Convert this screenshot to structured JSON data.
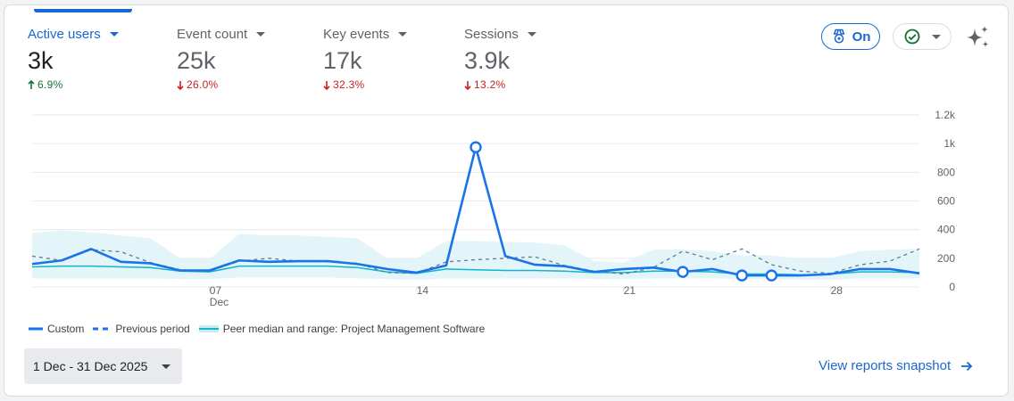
{
  "metrics": [
    {
      "label": "Active users",
      "value": "3k",
      "delta": "6.9%",
      "direction": "up",
      "active": true
    },
    {
      "label": "Event count",
      "value": "25k",
      "delta": "26.0%",
      "direction": "down",
      "active": false
    },
    {
      "label": "Key events",
      "value": "17k",
      "delta": "32.3%",
      "direction": "down",
      "active": false
    },
    {
      "label": "Sessions",
      "value": "3.9k",
      "delta": "13.2%",
      "direction": "down",
      "active": false
    }
  ],
  "toolbar": {
    "benchmark_toggle_label": "On",
    "benchmark_icon": "medal-icon",
    "status_icon": "check-circle-icon",
    "insights_icon": "sparkle-icon"
  },
  "legend": {
    "custom": "Custom",
    "previous": "Previous period",
    "peer": "Peer median and range: Project Management Software"
  },
  "date_range": {
    "label": "1 Dec - 31 Dec 2025"
  },
  "footer": {
    "view_link": "View reports snapshot",
    "arrow_icon": "arrow-right-icon"
  },
  "colors": {
    "primary": "#1967d2",
    "line_custom": "#1a73e8",
    "line_previous": "#5f7d95",
    "peer_median": "#12b5cb",
    "peer_range": "#e3f5f9",
    "up": "#137333",
    "down": "#c5221f"
  },
  "chart_data": {
    "type": "line",
    "title": "Active users",
    "x": [
      1,
      2,
      3,
      4,
      5,
      6,
      7,
      8,
      9,
      10,
      11,
      12,
      13,
      14,
      15,
      16,
      17,
      18,
      19,
      20,
      21,
      22,
      23,
      24,
      25,
      26,
      27,
      28,
      29,
      30,
      31
    ],
    "x_tick_labels": [
      {
        "day": 7,
        "label": "07",
        "sub": "Dec"
      },
      {
        "day": 14,
        "label": "14"
      },
      {
        "day": 21,
        "label": "21"
      },
      {
        "day": 28,
        "label": "28"
      }
    ],
    "y_tick_labels": [
      "0",
      "200",
      "400",
      "600",
      "800",
      "1k",
      "1.2k"
    ],
    "ylim": [
      0,
      1200
    ],
    "grid": true,
    "legend_position": "bottom",
    "series": [
      {
        "name": "Custom",
        "style": "solid",
        "values": [
          160,
          185,
          265,
          175,
          165,
          115,
          115,
          185,
          175,
          180,
          180,
          160,
          125,
          100,
          150,
          975,
          215,
          155,
          145,
          105,
          125,
          135,
          105,
          125,
          80,
          80,
          80,
          90,
          125,
          125,
          95
        ],
        "anomalies": [
          16,
          23,
          25,
          26
        ]
      },
      {
        "name": "Previous period",
        "style": "dashed",
        "values": [
          215,
          185,
          260,
          245,
          170,
          120,
          110,
          180,
          200,
          180,
          175,
          165,
          100,
          95,
          175,
          190,
          200,
          210,
          150,
          110,
          90,
          135,
          250,
          190,
          265,
          155,
          110,
          95,
          155,
          180,
          265
        ]
      },
      {
        "name": "Peer median",
        "style": "solid-thin",
        "values": [
          140,
          145,
          145,
          140,
          135,
          110,
          105,
          145,
          145,
          145,
          145,
          135,
          105,
          95,
          125,
          120,
          115,
          115,
          110,
          100,
          100,
          110,
          110,
          105,
          90,
          90,
          85,
          90,
          105,
          105,
          100
        ]
      },
      {
        "name": "Peer range upper",
        "style": "band",
        "values": [
          375,
          395,
          380,
          360,
          340,
          200,
          195,
          370,
          360,
          360,
          350,
          340,
          200,
          200,
          320,
          320,
          315,
          310,
          290,
          180,
          170,
          260,
          260,
          250,
          220,
          220,
          200,
          200,
          250,
          260,
          265
        ]
      },
      {
        "name": "Peer range lower",
        "style": "band",
        "values": [
          60,
          60,
          60,
          60,
          60,
          55,
          55,
          65,
          65,
          65,
          65,
          60,
          55,
          50,
          60,
          60,
          60,
          60,
          60,
          55,
          55,
          60,
          60,
          60,
          55,
          55,
          50,
          50,
          60,
          60,
          60
        ]
      }
    ]
  }
}
